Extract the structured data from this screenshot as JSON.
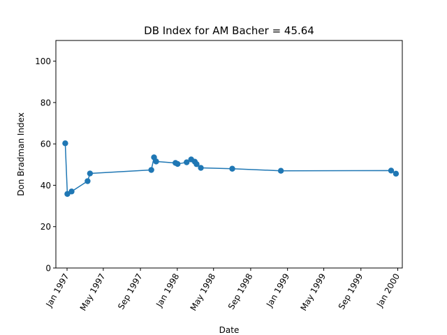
{
  "chart_data": {
    "type": "line",
    "title": "DB Index for AM Bacher = 45.64",
    "xlabel": "Date",
    "ylabel": "Don Bradman Index",
    "ylim": [
      0,
      110
    ],
    "yticks": [
      0,
      20,
      40,
      60,
      80,
      100
    ],
    "xlim": [
      "1996-11-25",
      "2000-01-16"
    ],
    "xticks": [
      {
        "date": "1997-01-01",
        "label": "Jan 1997"
      },
      {
        "date": "1997-05-01",
        "label": "May 1997"
      },
      {
        "date": "1997-09-01",
        "label": "Sep 1997"
      },
      {
        "date": "1998-01-01",
        "label": "Jan 1998"
      },
      {
        "date": "1998-05-01",
        "label": "May 1998"
      },
      {
        "date": "1998-09-01",
        "label": "Sep 1998"
      },
      {
        "date": "1999-01-01",
        "label": "Jan 1999"
      },
      {
        "date": "1999-05-01",
        "label": "May 1999"
      },
      {
        "date": "1999-09-01",
        "label": "Sep 1999"
      },
      {
        "date": "2000-01-01",
        "label": "Jan 2000"
      }
    ],
    "grid": false,
    "color": "#1f77b4",
    "series": [
      {
        "points": [
          {
            "x": "1996-12-26",
            "y": 60.3
          },
          {
            "x": "1997-01-02",
            "y": 35.8
          },
          {
            "x": "1997-01-16",
            "y": 37.0
          },
          {
            "x": "1997-03-10",
            "y": 42.0
          },
          {
            "x": "1997-03-18",
            "y": 45.7
          },
          {
            "x": "1997-10-07",
            "y": 47.4
          },
          {
            "x": "1997-10-16",
            "y": 53.5
          },
          {
            "x": "1997-10-23",
            "y": 51.5
          },
          {
            "x": "1997-12-26",
            "y": 50.8
          },
          {
            "x": "1998-01-02",
            "y": 50.3
          },
          {
            "x": "1998-02-01",
            "y": 51.1
          },
          {
            "x": "1998-02-16",
            "y": 52.5
          },
          {
            "x": "1998-02-28",
            "y": 51.4
          },
          {
            "x": "1998-03-06",
            "y": 50.2
          },
          {
            "x": "1998-03-20",
            "y": 48.4
          },
          {
            "x": "1998-07-02",
            "y": 48.0
          },
          {
            "x": "1998-12-10",
            "y": 47.0
          },
          {
            "x": "1999-12-10",
            "y": 47.1
          },
          {
            "x": "1999-12-26",
            "y": 45.6
          }
        ]
      }
    ]
  }
}
